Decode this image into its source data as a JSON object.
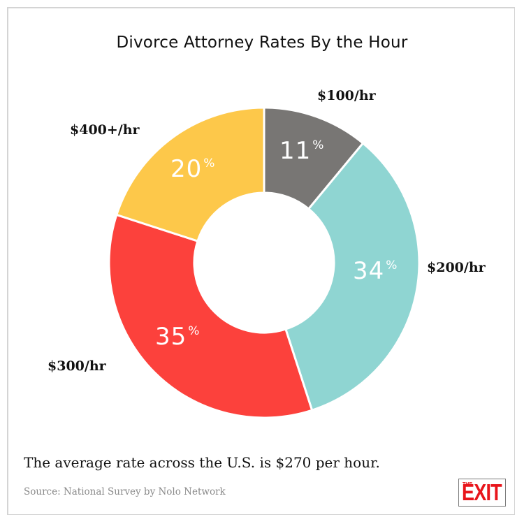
{
  "title": "Divorce Attorney Rates By the Hour",
  "chart_data": {
    "type": "pie",
    "subtype": "donut",
    "title": "Divorce Attorney Rates By the Hour",
    "categories": [
      "$100/hr",
      "$200/hr",
      "$300/hr",
      "$400+/hr"
    ],
    "values": [
      11,
      34,
      35,
      20
    ],
    "value_labels": [
      "11%",
      "34%",
      "35%",
      "20%"
    ],
    "unit": "%",
    "colors": [
      "#787674",
      "#8fd5d2",
      "#fc413c",
      "#fdc84a"
    ],
    "start_angle_deg": 0,
    "direction": "clockwise",
    "legend": "none (direct labels)"
  },
  "labels": {
    "l100": "$100/hr",
    "l200": "$200/hr",
    "l300": "$300/hr",
    "l400": "$400+/hr"
  },
  "percents": {
    "p11": "11",
    "p34": "34",
    "p35": "35",
    "p20": "20",
    "sign": "%"
  },
  "footer": {
    "note": "The average rate across the U.S. is $270 per hour.",
    "source": "Source: National Survey by Nolo Network"
  },
  "logo": {
    "small": "THE",
    "big": "EXIT"
  }
}
